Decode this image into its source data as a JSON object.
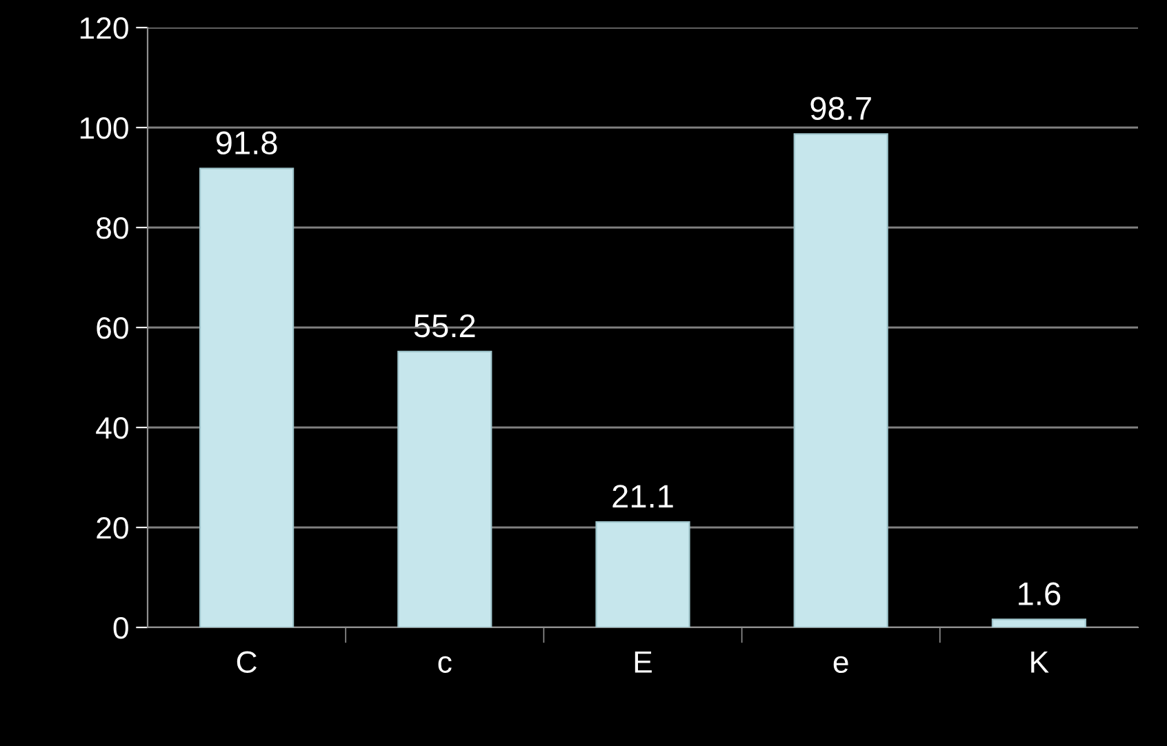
{
  "chart_data": {
    "type": "bar",
    "categories": [
      "C",
      "c",
      "E",
      "e",
      "K"
    ],
    "values": [
      91.8,
      55.2,
      21.1,
      98.7,
      1.6
    ],
    "color": "#c6e6ec",
    "ylim": [
      0,
      120
    ],
    "yticks": [
      0,
      20,
      40,
      60,
      80,
      100,
      120
    ],
    "grid": "y",
    "data_labels": true
  }
}
